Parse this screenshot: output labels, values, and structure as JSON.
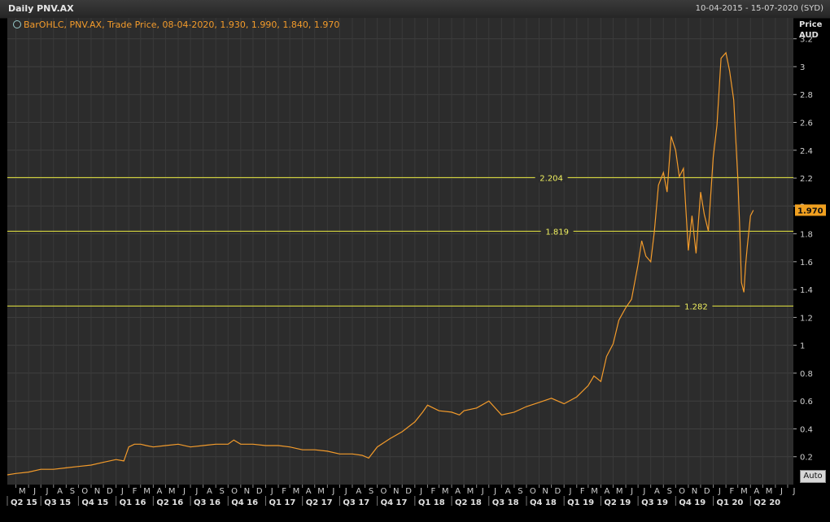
{
  "header": {
    "title": "Daily PNV.AX",
    "date_range": "10-04-2015 - 15-07-2020 (SYD)"
  },
  "legend": {
    "text": "BarOHLC, PNV.AX, Trade Price, 08-04-2020, 1.930, 1.990, 1.840, 1.970",
    "icon": "clock-icon"
  },
  "controls": {
    "auto_label": "Auto"
  },
  "colors": {
    "series": "#f39b2b",
    "hline": "#e8e840",
    "badge": "#f0a020"
  },
  "chart_data": {
    "type": "line",
    "series": [
      {
        "x": [
          "2015-04-10",
          "2015-05-01",
          "2015-06-01",
          "2015-07-01",
          "2015-08-01",
          "2015-09-01",
          "2015-10-01",
          "2015-11-01",
          "2015-12-01",
          "2016-01-01",
          "2016-01-20",
          "2016-02-01",
          "2016-02-15",
          "2016-03-01",
          "2016-03-15",
          "2016-04-01",
          "2016-05-01",
          "2016-06-01",
          "2016-07-01",
          "2016-08-01",
          "2016-09-01",
          "2016-10-01",
          "2016-10-15",
          "2016-11-01",
          "2016-12-01",
          "2017-01-01",
          "2017-02-01",
          "2017-03-01",
          "2017-04-01",
          "2017-05-01",
          "2017-06-01",
          "2017-07-01",
          "2017-08-01",
          "2017-08-25",
          "2017-09-10",
          "2017-10-01",
          "2017-11-01",
          "2017-12-01",
          "2018-01-01",
          "2018-01-20",
          "2018-02-01",
          "2018-03-01",
          "2018-04-01",
          "2018-04-20",
          "2018-05-01",
          "2018-06-01",
          "2018-07-01",
          "2018-08-01",
          "2018-09-01",
          "2018-10-01",
          "2018-11-01",
          "2018-12-01",
          "2019-01-01",
          "2019-02-01",
          "2019-03-01",
          "2019-03-15",
          "2019-04-01",
          "2019-04-15",
          "2019-05-01",
          "2019-05-15",
          "2019-06-01",
          "2019-06-15",
          "2019-07-01",
          "2019-07-10",
          "2019-07-20",
          "2019-08-01",
          "2019-08-10",
          "2019-08-20",
          "2019-09-01",
          "2019-09-10",
          "2019-09-20",
          "2019-10-01",
          "2019-10-10",
          "2019-10-20",
          "2019-11-01",
          "2019-11-10",
          "2019-11-20",
          "2019-12-01",
          "2019-12-10",
          "2019-12-20",
          "2020-01-01",
          "2020-01-10",
          "2020-01-20",
          "2020-02-01",
          "2020-02-10",
          "2020-02-20",
          "2020-03-01",
          "2020-03-05",
          "2020-03-10",
          "2020-03-16",
          "2020-03-20",
          "2020-03-24",
          "2020-04-01",
          "2020-04-08"
        ],
        "y": [
          0.07,
          0.08,
          0.09,
          0.11,
          0.11,
          0.12,
          0.13,
          0.14,
          0.16,
          0.18,
          0.17,
          0.27,
          0.29,
          0.29,
          0.28,
          0.27,
          0.28,
          0.29,
          0.27,
          0.28,
          0.29,
          0.29,
          0.32,
          0.29,
          0.29,
          0.28,
          0.28,
          0.27,
          0.25,
          0.25,
          0.24,
          0.22,
          0.22,
          0.21,
          0.19,
          0.27,
          0.33,
          0.38,
          0.45,
          0.52,
          0.57,
          0.53,
          0.52,
          0.5,
          0.53,
          0.55,
          0.6,
          0.5,
          0.52,
          0.56,
          0.59,
          0.62,
          0.58,
          0.63,
          0.71,
          0.78,
          0.74,
          0.92,
          1.01,
          1.18,
          1.27,
          1.33,
          1.58,
          1.75,
          1.64,
          1.6,
          1.82,
          2.15,
          2.24,
          2.1,
          2.5,
          2.4,
          2.21,
          2.27,
          1.68,
          1.93,
          1.66,
          2.1,
          1.94,
          1.82,
          2.35,
          2.58,
          3.06,
          3.1,
          2.97,
          2.76,
          2.2,
          1.9,
          1.45,
          1.38,
          1.57,
          1.7,
          1.93,
          1.97
        ]
      }
    ],
    "ylabel": "Price AUD",
    "ylim": [
      0,
      3.35
    ],
    "yticks": [
      0.2,
      0.4,
      0.6,
      0.8,
      1,
      1.2,
      1.4,
      1.6,
      1.8,
      2,
      2.2,
      2.4,
      2.6,
      2.8,
      3,
      3.2
    ],
    "ytick_labels": [
      "0.2",
      "0.4",
      "0.6",
      "0.8",
      "1",
      "1.2",
      "1.4",
      "1.6",
      "1.8",
      "2",
      "2.2",
      "2.4",
      "2.6",
      "2.8",
      "3",
      "3.2"
    ],
    "xlim": [
      "2015-04-10",
      "2020-07-15"
    ],
    "month_ticks": [
      "2015-05-01",
      "2015-06-01",
      "2015-07-01",
      "2015-08-01",
      "2015-09-01",
      "2015-10-01",
      "2015-11-01",
      "2015-12-01",
      "2016-01-01",
      "2016-02-01",
      "2016-03-01",
      "2016-04-01",
      "2016-05-01",
      "2016-06-01",
      "2016-07-01",
      "2016-08-01",
      "2016-09-01",
      "2016-10-01",
      "2016-11-01",
      "2016-12-01",
      "2017-01-01",
      "2017-02-01",
      "2017-03-01",
      "2017-04-01",
      "2017-05-01",
      "2017-06-01",
      "2017-07-01",
      "2017-08-01",
      "2017-09-01",
      "2017-10-01",
      "2017-11-01",
      "2017-12-01",
      "2018-01-01",
      "2018-02-01",
      "2018-03-01",
      "2018-04-01",
      "2018-05-01",
      "2018-06-01",
      "2018-07-01",
      "2018-08-01",
      "2018-09-01",
      "2018-10-01",
      "2018-11-01",
      "2018-12-01",
      "2019-01-01",
      "2019-02-01",
      "2019-03-01",
      "2019-04-01",
      "2019-05-01",
      "2019-06-01",
      "2019-07-01",
      "2019-08-01",
      "2019-09-01",
      "2019-10-01",
      "2019-11-01",
      "2019-12-01",
      "2020-01-01",
      "2020-02-01",
      "2020-03-01",
      "2020-04-01",
      "2020-05-01",
      "2020-06-01",
      "2020-07-01"
    ],
    "month_labels": [
      "M",
      "J",
      "J",
      "A",
      "S",
      "O",
      "N",
      "D",
      "J",
      "F",
      "M",
      "A",
      "M",
      "J",
      "J",
      "A",
      "S",
      "O",
      "N",
      "D",
      "J",
      "F",
      "M",
      "A",
      "M",
      "J",
      "J",
      "A",
      "S",
      "O",
      "N",
      "D",
      "J",
      "F",
      "M",
      "A",
      "M",
      "J",
      "J",
      "A",
      "S",
      "O",
      "N",
      "D",
      "J",
      "F",
      "M",
      "A",
      "M",
      "J",
      "J",
      "A",
      "S",
      "O",
      "N",
      "D",
      "J",
      "F",
      "M",
      "A",
      "M",
      "J",
      "J"
    ],
    "quarter_ticks": [
      "2015-04-01",
      "2015-07-01",
      "2015-10-01",
      "2016-01-01",
      "2016-04-01",
      "2016-07-01",
      "2016-10-01",
      "2017-01-01",
      "2017-04-01",
      "2017-07-01",
      "2017-10-01",
      "2018-01-01",
      "2018-04-01",
      "2018-07-01",
      "2018-10-01",
      "2019-01-01",
      "2019-04-01",
      "2019-07-01",
      "2019-10-01",
      "2020-01-01",
      "2020-04-01"
    ],
    "quarter_labels": [
      "Q2 15",
      "Q3 15",
      "Q4 15",
      "Q1 16",
      "Q2 16",
      "Q3 16",
      "Q4 16",
      "Q1 17",
      "Q2 17",
      "Q3 17",
      "Q4 17",
      "Q1 18",
      "Q2 18",
      "Q3 18",
      "Q4 18",
      "Q1 19",
      "Q2 19",
      "Q3 19",
      "Q4 19",
      "Q1 20",
      "Q2 20"
    ],
    "horizontal_lines": [
      {
        "value": 2.204,
        "label": "2.204",
        "label_date": "2018-12-01"
      },
      {
        "value": 1.819,
        "label": "1.819",
        "label_date": "2018-12-15"
      },
      {
        "value": 1.282,
        "label": "1.282",
        "label_date": "2019-11-20"
      }
    ],
    "last_value_label": "1.970",
    "last_value": 1.97,
    "grid": true
  }
}
